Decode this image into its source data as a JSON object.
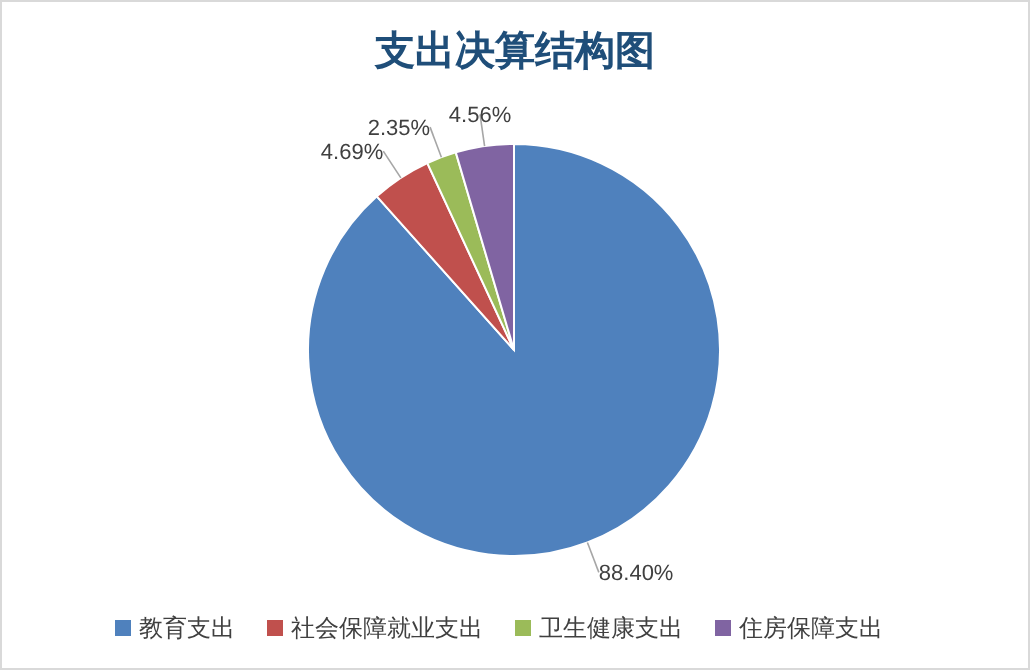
{
  "chart_data": {
    "type": "pie",
    "title": "支出决算结构图",
    "categories": [
      "教育支出",
      "社会保障就业支出",
      "卫生健康支出",
      "住房保障支出"
    ],
    "values": [
      88.4,
      4.69,
      2.35,
      4.56
    ],
    "value_labels": [
      "88.40%",
      "4.69%",
      "2.35%",
      "4.56%"
    ],
    "colors": [
      "#4f81bd",
      "#c0504d",
      "#9bbb59",
      "#8064a2"
    ],
    "legend": "bottom"
  }
}
